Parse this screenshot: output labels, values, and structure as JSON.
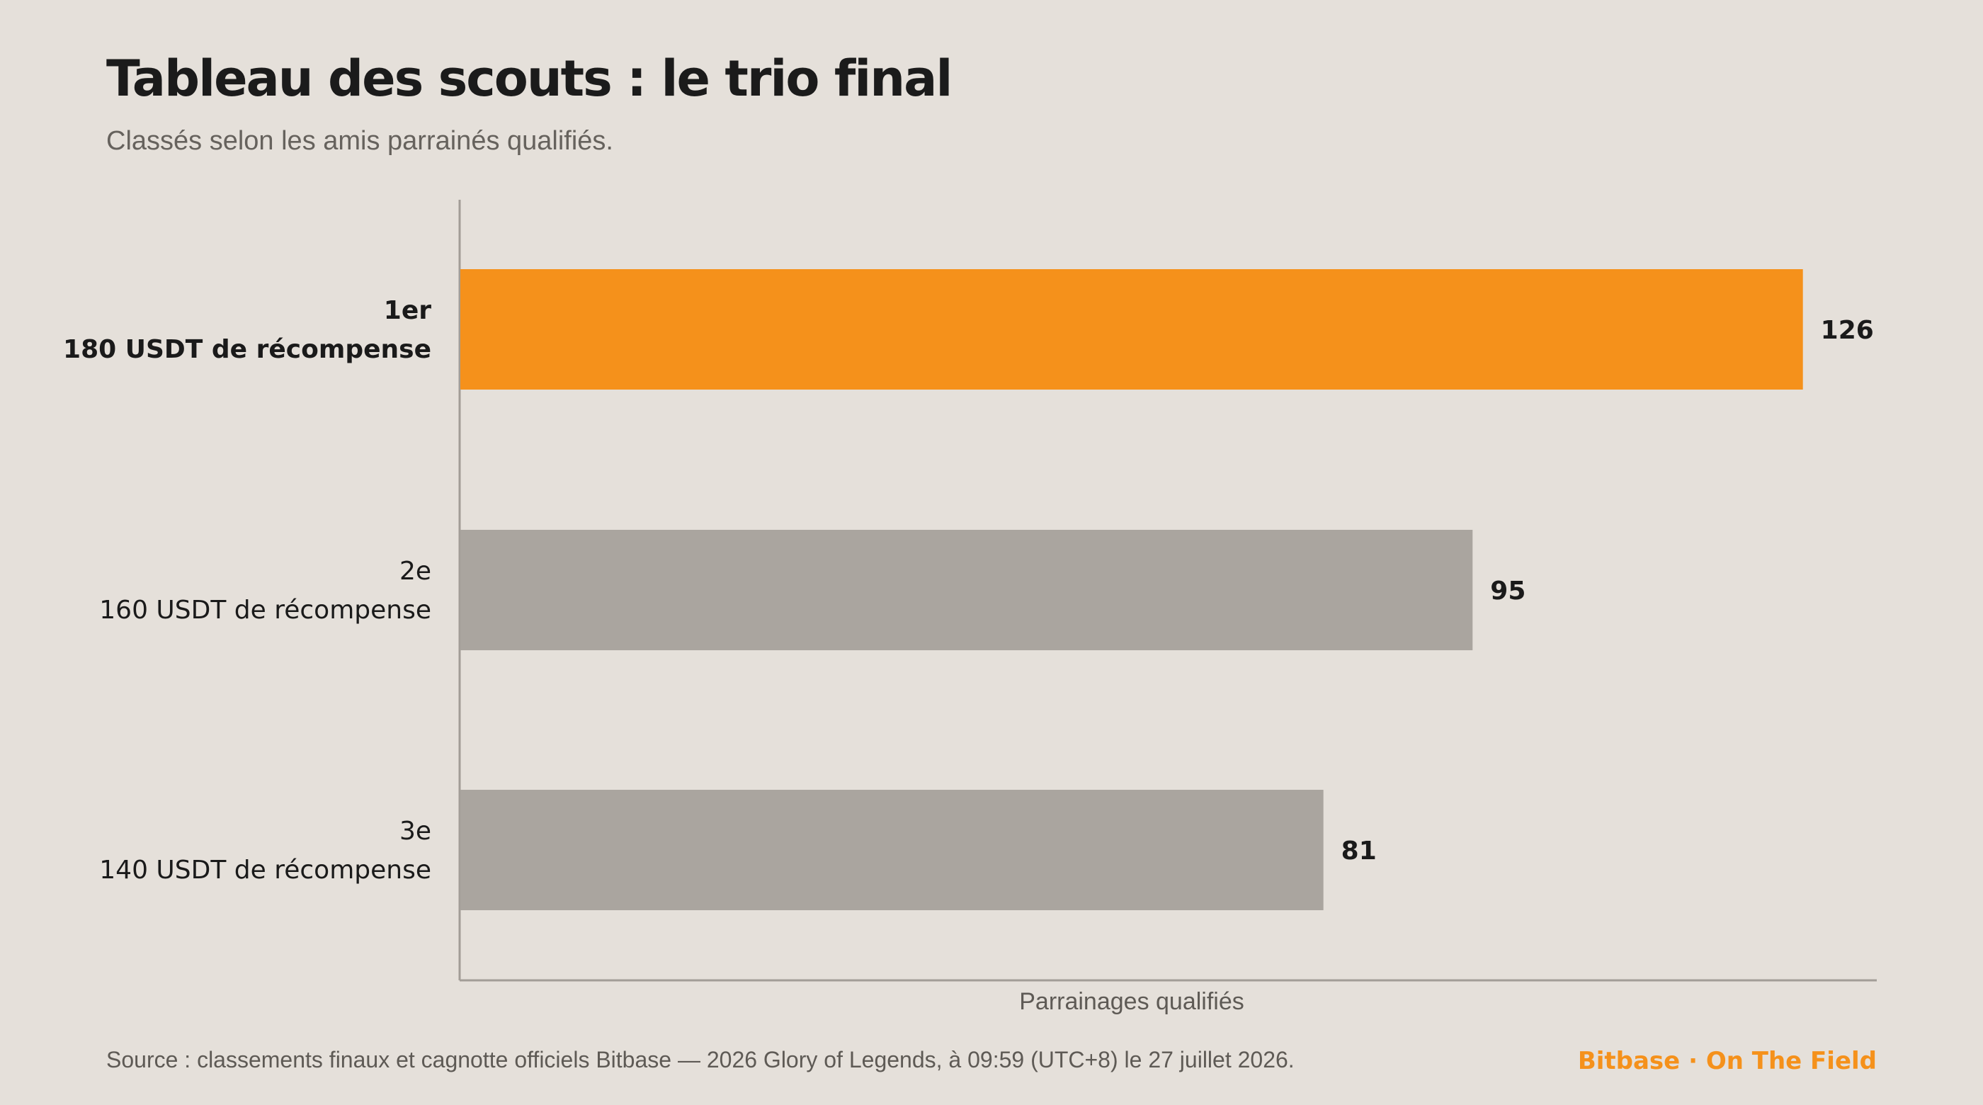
{
  "title": "Tableau des scouts : le trio final",
  "subtitle": "Classés selon les amis parrainés qualifiés.",
  "source": "Source : classements finaux et cagnotte officiels Bitbase — 2026 Glory of Legends, à 09:59 (UTC+8) le 27 juillet 2026.",
  "brand": "Bitbase · On The Field",
  "colors": {
    "highlight": "#f5911b",
    "bar": "#aaa59f",
    "axis": "#a29d97",
    "background": "#e5e0da",
    "brand": "#f5911b"
  },
  "chart_data": {
    "type": "bar",
    "orientation": "horizontal",
    "xlabel": "Parrainages qualifiés",
    "xlim": [
      0,
      133
    ],
    "grid": false,
    "categories": [
      {
        "rank": "1er",
        "reward": "180 USDT de récompense",
        "value": 126,
        "highlight": true
      },
      {
        "rank": "2e",
        "reward": "160 USDT de récompense",
        "value": 95,
        "highlight": false
      },
      {
        "rank": "3e",
        "reward": "140 USDT de récompense",
        "value": 81,
        "highlight": false
      }
    ]
  }
}
